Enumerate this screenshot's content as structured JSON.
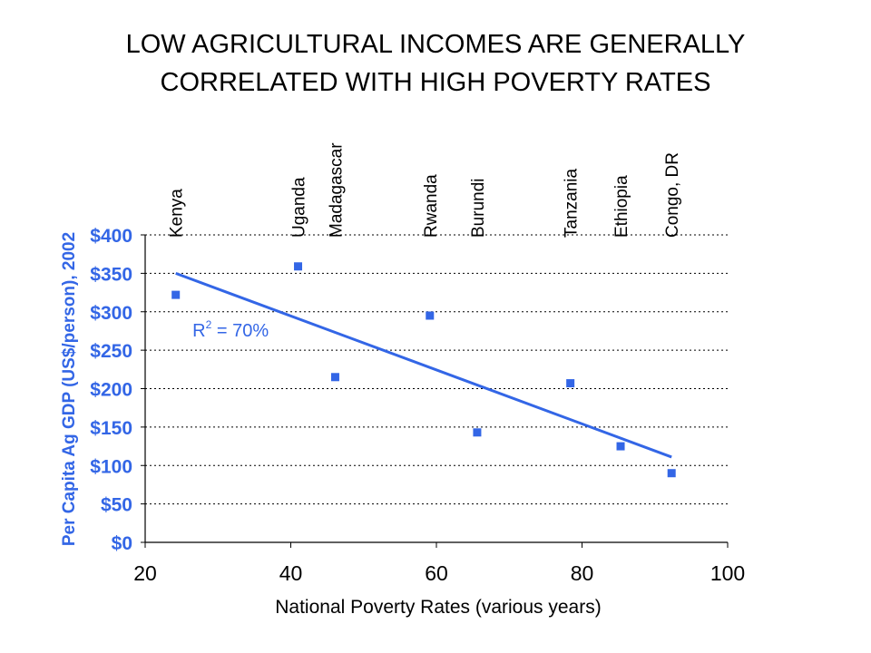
{
  "title_line1": "LOW AGRICULTURAL INCOMES ARE GENERALLY",
  "title_line2": "CORRELATED WITH HIGH POVERTY RATES",
  "chart_data": {
    "type": "scatter",
    "xlabel": "National Poverty Rates (various years)",
    "ylabel": "Per Capita Ag GDP (US$/person), 2002",
    "xlim": [
      20,
      100
    ],
    "ylim": [
      0,
      400
    ],
    "x_ticks": [
      20,
      40,
      60,
      80,
      100
    ],
    "y_ticks": [
      0,
      50,
      100,
      150,
      200,
      250,
      300,
      350,
      400
    ],
    "y_tick_labels": [
      "$0",
      "$50",
      "$100",
      "$150",
      "$200",
      "$250",
      "$300",
      "$350",
      "$400"
    ],
    "grid": "horizontal dotted",
    "marker_color": "#3366e6",
    "label_color": "#3366e6",
    "points": [
      {
        "x": 24.2,
        "y": 322
      },
      {
        "x": 41.0,
        "y": 359
      },
      {
        "x": 46.1,
        "y": 215
      },
      {
        "x": 59.1,
        "y": 295
      },
      {
        "x": 65.6,
        "y": 143
      },
      {
        "x": 78.4,
        "y": 207
      },
      {
        "x": 85.3,
        "y": 125
      },
      {
        "x": 92.3,
        "y": 90
      }
    ],
    "trendline": {
      "x": [
        24.2,
        92.3
      ],
      "y": [
        350,
        111
      ]
    },
    "annotation": {
      "text_R": "R",
      "text_sup": "2",
      "text_rest": " = 70%",
      "x": 26.5,
      "y": 268
    },
    "country_labels": [
      {
        "name": "Kenya",
        "x": 24.2
      },
      {
        "name": "Uganda",
        "x": 41.0
      },
      {
        "name": "Madagascar",
        "x": 46.1
      },
      {
        "name": "Rwanda",
        "x": 59.1
      },
      {
        "name": "Burundi",
        "x": 65.6
      },
      {
        "name": "Tanzania",
        "x": 78.4
      },
      {
        "name": "Ethiopia",
        "x": 85.3
      },
      {
        "name": "Congo, DR",
        "x": 92.3
      }
    ]
  }
}
